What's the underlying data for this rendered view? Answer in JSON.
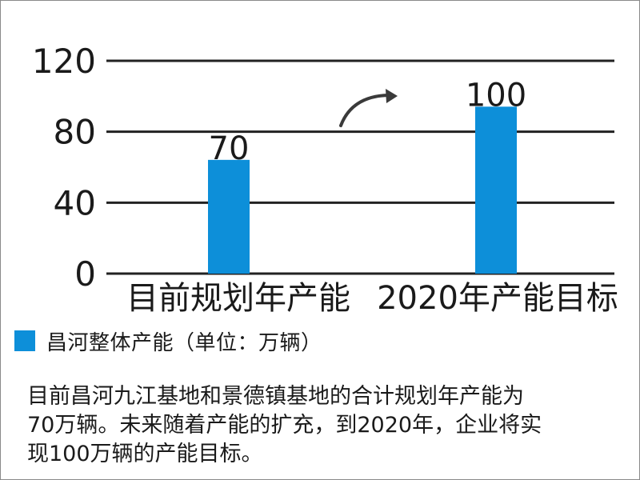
{
  "chart_data": {
    "type": "bar",
    "categories": [
      "目前规划年产能",
      "2020年产能目标"
    ],
    "series": [
      {
        "name": "昌河整体产能（单位：万辆）",
        "values": [
          70,
          100
        ]
      }
    ],
    "data_labels": [
      "70",
      "100"
    ],
    "ylim": [
      0,
      120
    ],
    "yticks": [
      0,
      40,
      80,
      120
    ],
    "ytick_labels": [
      "0",
      "40",
      "80",
      "120"
    ],
    "grid": true,
    "legend_position": "bottom-left",
    "annotations": [
      "curved-arrow"
    ],
    "colors": {
      "bar": "#0D8FD9",
      "grid": "#222222",
      "text": "#1a1a1a"
    }
  },
  "legend": {
    "label": "昌河整体产能（单位：万辆）"
  },
  "caption": {
    "line1": "目前昌河九江基地和景德镇基地的合计规划年产能为",
    "line2": "70万辆。未来随着产能的扩充，到2020年，企业将实",
    "line3": "现100万辆的产能目标。"
  }
}
